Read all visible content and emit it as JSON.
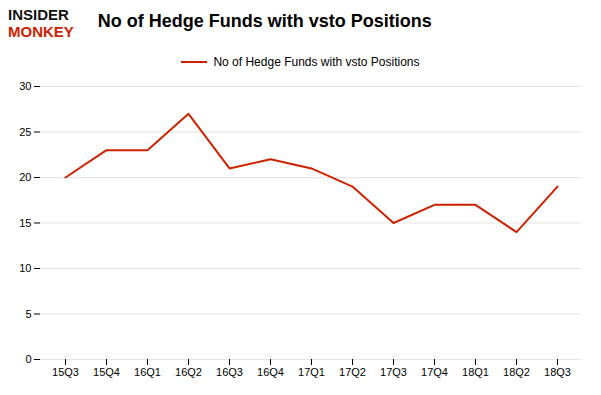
{
  "chart_data": {
    "type": "line",
    "title": "No of Hedge Funds with vsto Positions",
    "annotations": [
      {
        "text": "INSIDER",
        "color": "#111111"
      },
      {
        "text": "MONKEY",
        "color": "#cc2200"
      }
    ],
    "categories": [
      "15Q3",
      "15Q4",
      "16Q1",
      "16Q2",
      "16Q3",
      "16Q4",
      "17Q1",
      "17Q2",
      "17Q3",
      "17Q4",
      "18Q1",
      "18Q2",
      "18Q3"
    ],
    "series": [
      {
        "name": "No of Hedge Funds with vsto Positions",
        "color": "#cc2200",
        "values": [
          20,
          23,
          23,
          27,
          21,
          22,
          21,
          19,
          15,
          17,
          17,
          14,
          19
        ]
      }
    ],
    "ylim": [
      0,
      30
    ],
    "yticks": [
      0,
      5,
      10,
      15,
      20,
      25,
      30
    ],
    "grid": true,
    "legend": "top"
  }
}
